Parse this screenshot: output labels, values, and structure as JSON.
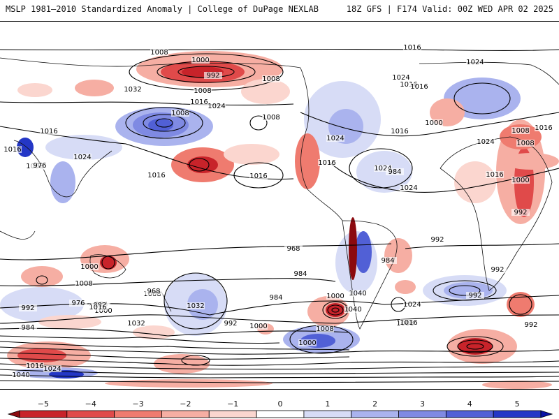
{
  "header": {
    "left": "MSLP 1981–2010 Standardized Anomaly | College of DuPage NEXLAB",
    "right": "18Z GFS | F174 Valid: 00Z WED APR 02 2025"
  },
  "colorbar": {
    "ticks": [
      "−5",
      "−4",
      "−3",
      "−2",
      "−1",
      "0",
      "1",
      "2",
      "3",
      "4",
      "5"
    ],
    "bins": [
      "#8b0a0f",
      "#c8232a",
      "#e04a4a",
      "#ef7b6f",
      "#f6aea3",
      "#fbd6cf",
      "#ffffff",
      "#d7dcf6",
      "#aab3ee",
      "#7f8ae3",
      "#5160d6",
      "#2437c6",
      "#0b12a6"
    ]
  },
  "map": {
    "isobar_labels": [
      "1008",
      "1000",
      "992",
      "1016",
      "1024",
      "1008",
      "1016",
      "1024",
      "1032",
      "1008",
      "1016",
      "1024",
      "1008",
      "1016",
      "1016",
      "1016",
      "1008",
      "1024",
      "1016",
      "1000",
      "1008",
      "1024",
      "1016",
      "1008",
      "1016",
      "1016",
      "1024",
      "1024",
      "1016",
      "1008",
      "1024",
      "1016",
      "1000",
      "992",
      "976",
      "984",
      "1000",
      "968",
      "984",
      "992",
      "1008",
      "1040",
      "1000",
      "984",
      "992",
      "976",
      "984",
      "992",
      "1032",
      "1000",
      "992",
      "1008",
      "984",
      "1040",
      "1032",
      "1016",
      "1024",
      "992",
      "1008",
      "1000",
      "992",
      "968",
      "984",
      "1008",
      "1000",
      "1016",
      "992",
      "1024",
      "1016",
      "1040"
    ]
  }
}
